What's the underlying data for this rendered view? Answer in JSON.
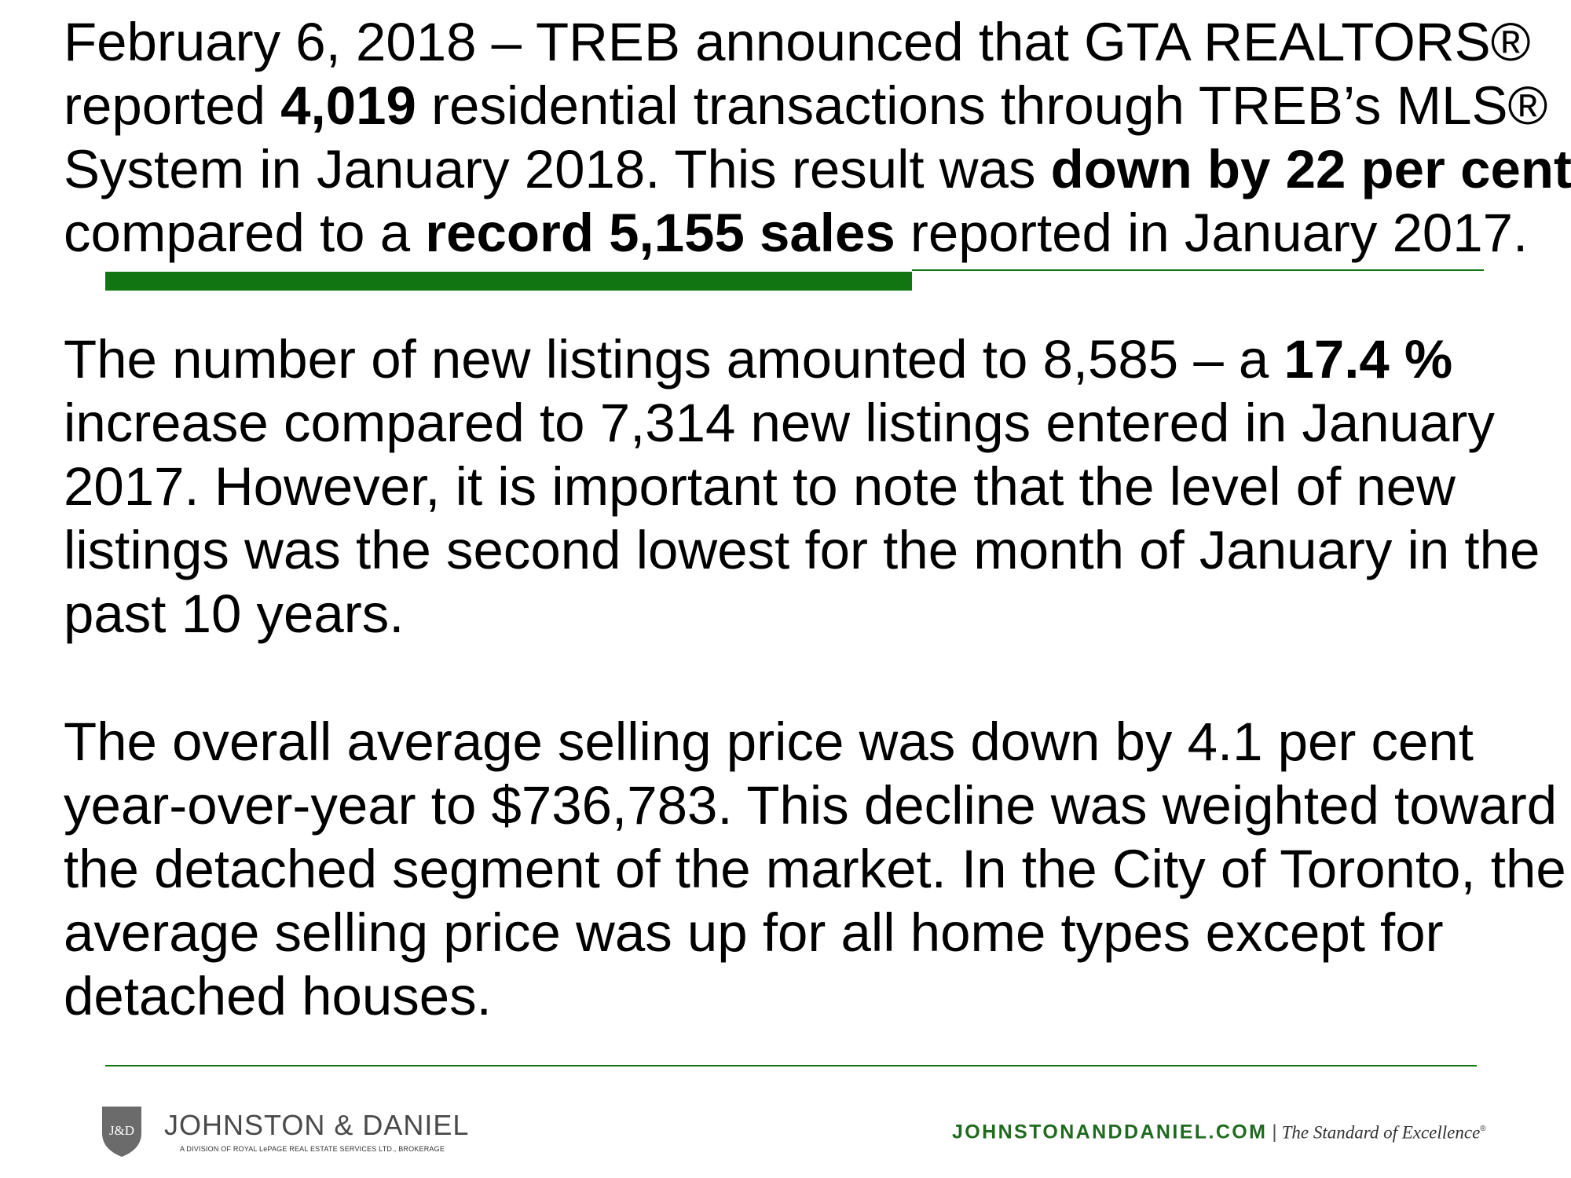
{
  "paragraph1": {
    "t1": "February 6, 2018 – TREB announced that GTA REALTORS®",
    "t2": "reported ",
    "b1": "4,019",
    "t3": " residential transactions through TREB’s MLS®",
    "t4": "System in January 2018. This result was ",
    "b2": "down by 22 per cent",
    "t5": "compared to a ",
    "b3": "record 5,155 sales",
    "t6": " reported in January 2017."
  },
  "paragraph2": {
    "t1": "The number of new listings amounted to 8,585 – a ",
    "b1": "17.4 %",
    "t2": "increase compared to 7,314 new listings entered in January",
    "t3": "2017. However, it is important to note that the level of new",
    "t4": "listings was the second lowest for the month of January in the",
    "t5": "past 10 years."
  },
  "paragraph3": {
    "l1": "The overall average selling price was down by 4.1 per cent",
    "l2": "year-over-year to $736,783. This decline was weighted toward",
    "l3": "the detached segment of the market. In the City of Toronto, the",
    "l4": "average selling price was up for all home types except for",
    "l5": "detached houses."
  },
  "footer": {
    "logo_mark": "J&D",
    "brand_name": "JOHNSTON & DANIEL",
    "brand_sub": "A DIVISION OF ROYAL LePAGE REAL ESTATE SERVICES LTD., BROKERAGE",
    "website": "JOHNSTONANDDANIEL.COM",
    "separator": "|",
    "tagline": "The Standard of Excellence",
    "trademark": "®"
  },
  "colors": {
    "accent_green": "#117511",
    "site_green": "#1f6b1f",
    "shield_gray": "#6b6b6b"
  }
}
